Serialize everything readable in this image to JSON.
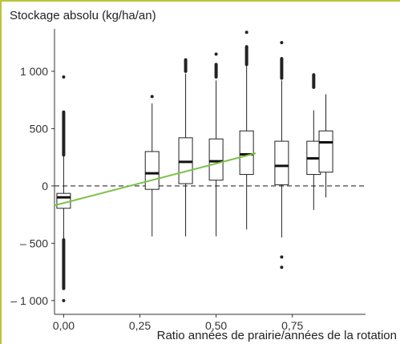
{
  "colors": {
    "frame": "#b8c63a",
    "axis": "#333333",
    "box_stroke": "#222222",
    "median": "#111111",
    "fit_line": "#7ac143",
    "zero_line": "#444444"
  },
  "chart_data": {
    "type": "boxplot",
    "title": "",
    "ylabel": "Stockage absolu (kg/ha/an)",
    "xlabel": "Ratio années de prairie/années de la rotation",
    "xlim": [
      -0.03,
      0.99
    ],
    "ylim": [
      -1120,
      1370
    ],
    "x_ticks": [
      {
        "value": 0.0,
        "label": "0,00"
      },
      {
        "value": 0.25,
        "label": "0,25"
      },
      {
        "value": 0.5,
        "label": "0,50"
      },
      {
        "value": 0.75,
        "label": "0,75"
      }
    ],
    "y_ticks": [
      {
        "value": 1000,
        "label": "1 000"
      },
      {
        "value": 500,
        "label": "500"
      },
      {
        "value": 0,
        "label": "0"
      },
      {
        "value": -500,
        "label": "– 500"
      },
      {
        "value": -1000,
        "label": "– 1 000"
      }
    ],
    "reference_line": {
      "y": 0,
      "style": "dashed"
    },
    "boxes": [
      {
        "x": 0.0,
        "q1": -195,
        "median": -100,
        "q3": -65,
        "whisker_low": -470,
        "whisker_high": 270,
        "outliers_low": [
          -470,
          -1000
        ],
        "outliers_high": [
          270,
          950
        ]
      },
      {
        "x": 0.29,
        "q1": -30,
        "median": 110,
        "q3": 300,
        "whisker_low": -440,
        "whisker_high": 720,
        "outliers_low": [],
        "outliers_high": [
          780
        ]
      },
      {
        "x": 0.4,
        "q1": 20,
        "median": 210,
        "q3": 420,
        "whisker_low": -440,
        "whisker_high": 980,
        "outliers_low": [],
        "outliers_high": [
          1000,
          1100
        ]
      },
      {
        "x": 0.5,
        "q1": 50,
        "median": 215,
        "q3": 410,
        "whisker_low": -440,
        "whisker_high": 920,
        "outliers_low": [],
        "outliers_high": [
          950,
          1150
        ]
      },
      {
        "x": 0.6,
        "q1": 100,
        "median": 275,
        "q3": 480,
        "whisker_low": -380,
        "whisker_high": 1050,
        "outliers_low": [],
        "outliers_high": [
          1060,
          1340
        ]
      },
      {
        "x": 0.715,
        "q1": 10,
        "median": 175,
        "q3": 390,
        "whisker_low": -450,
        "whisker_high": 920,
        "outliers_low": [
          -620,
          -710
        ],
        "outliers_high": [
          940,
          1250
        ]
      },
      {
        "x": 0.82,
        "q1": 100,
        "median": 240,
        "q3": 390,
        "whisker_low": -210,
        "whisker_high": 660,
        "outliers_low": [],
        "outliers_high": [
          860,
          970
        ]
      },
      {
        "x": 0.86,
        "q1": 120,
        "median": 380,
        "q3": 480,
        "whisker_low": -100,
        "whisker_high": 800,
        "outliers_low": [],
        "outliers_high": []
      }
    ],
    "fit_line": {
      "x": [
        -0.03,
        0.63
      ],
      "y": [
        -170,
        285
      ]
    }
  }
}
